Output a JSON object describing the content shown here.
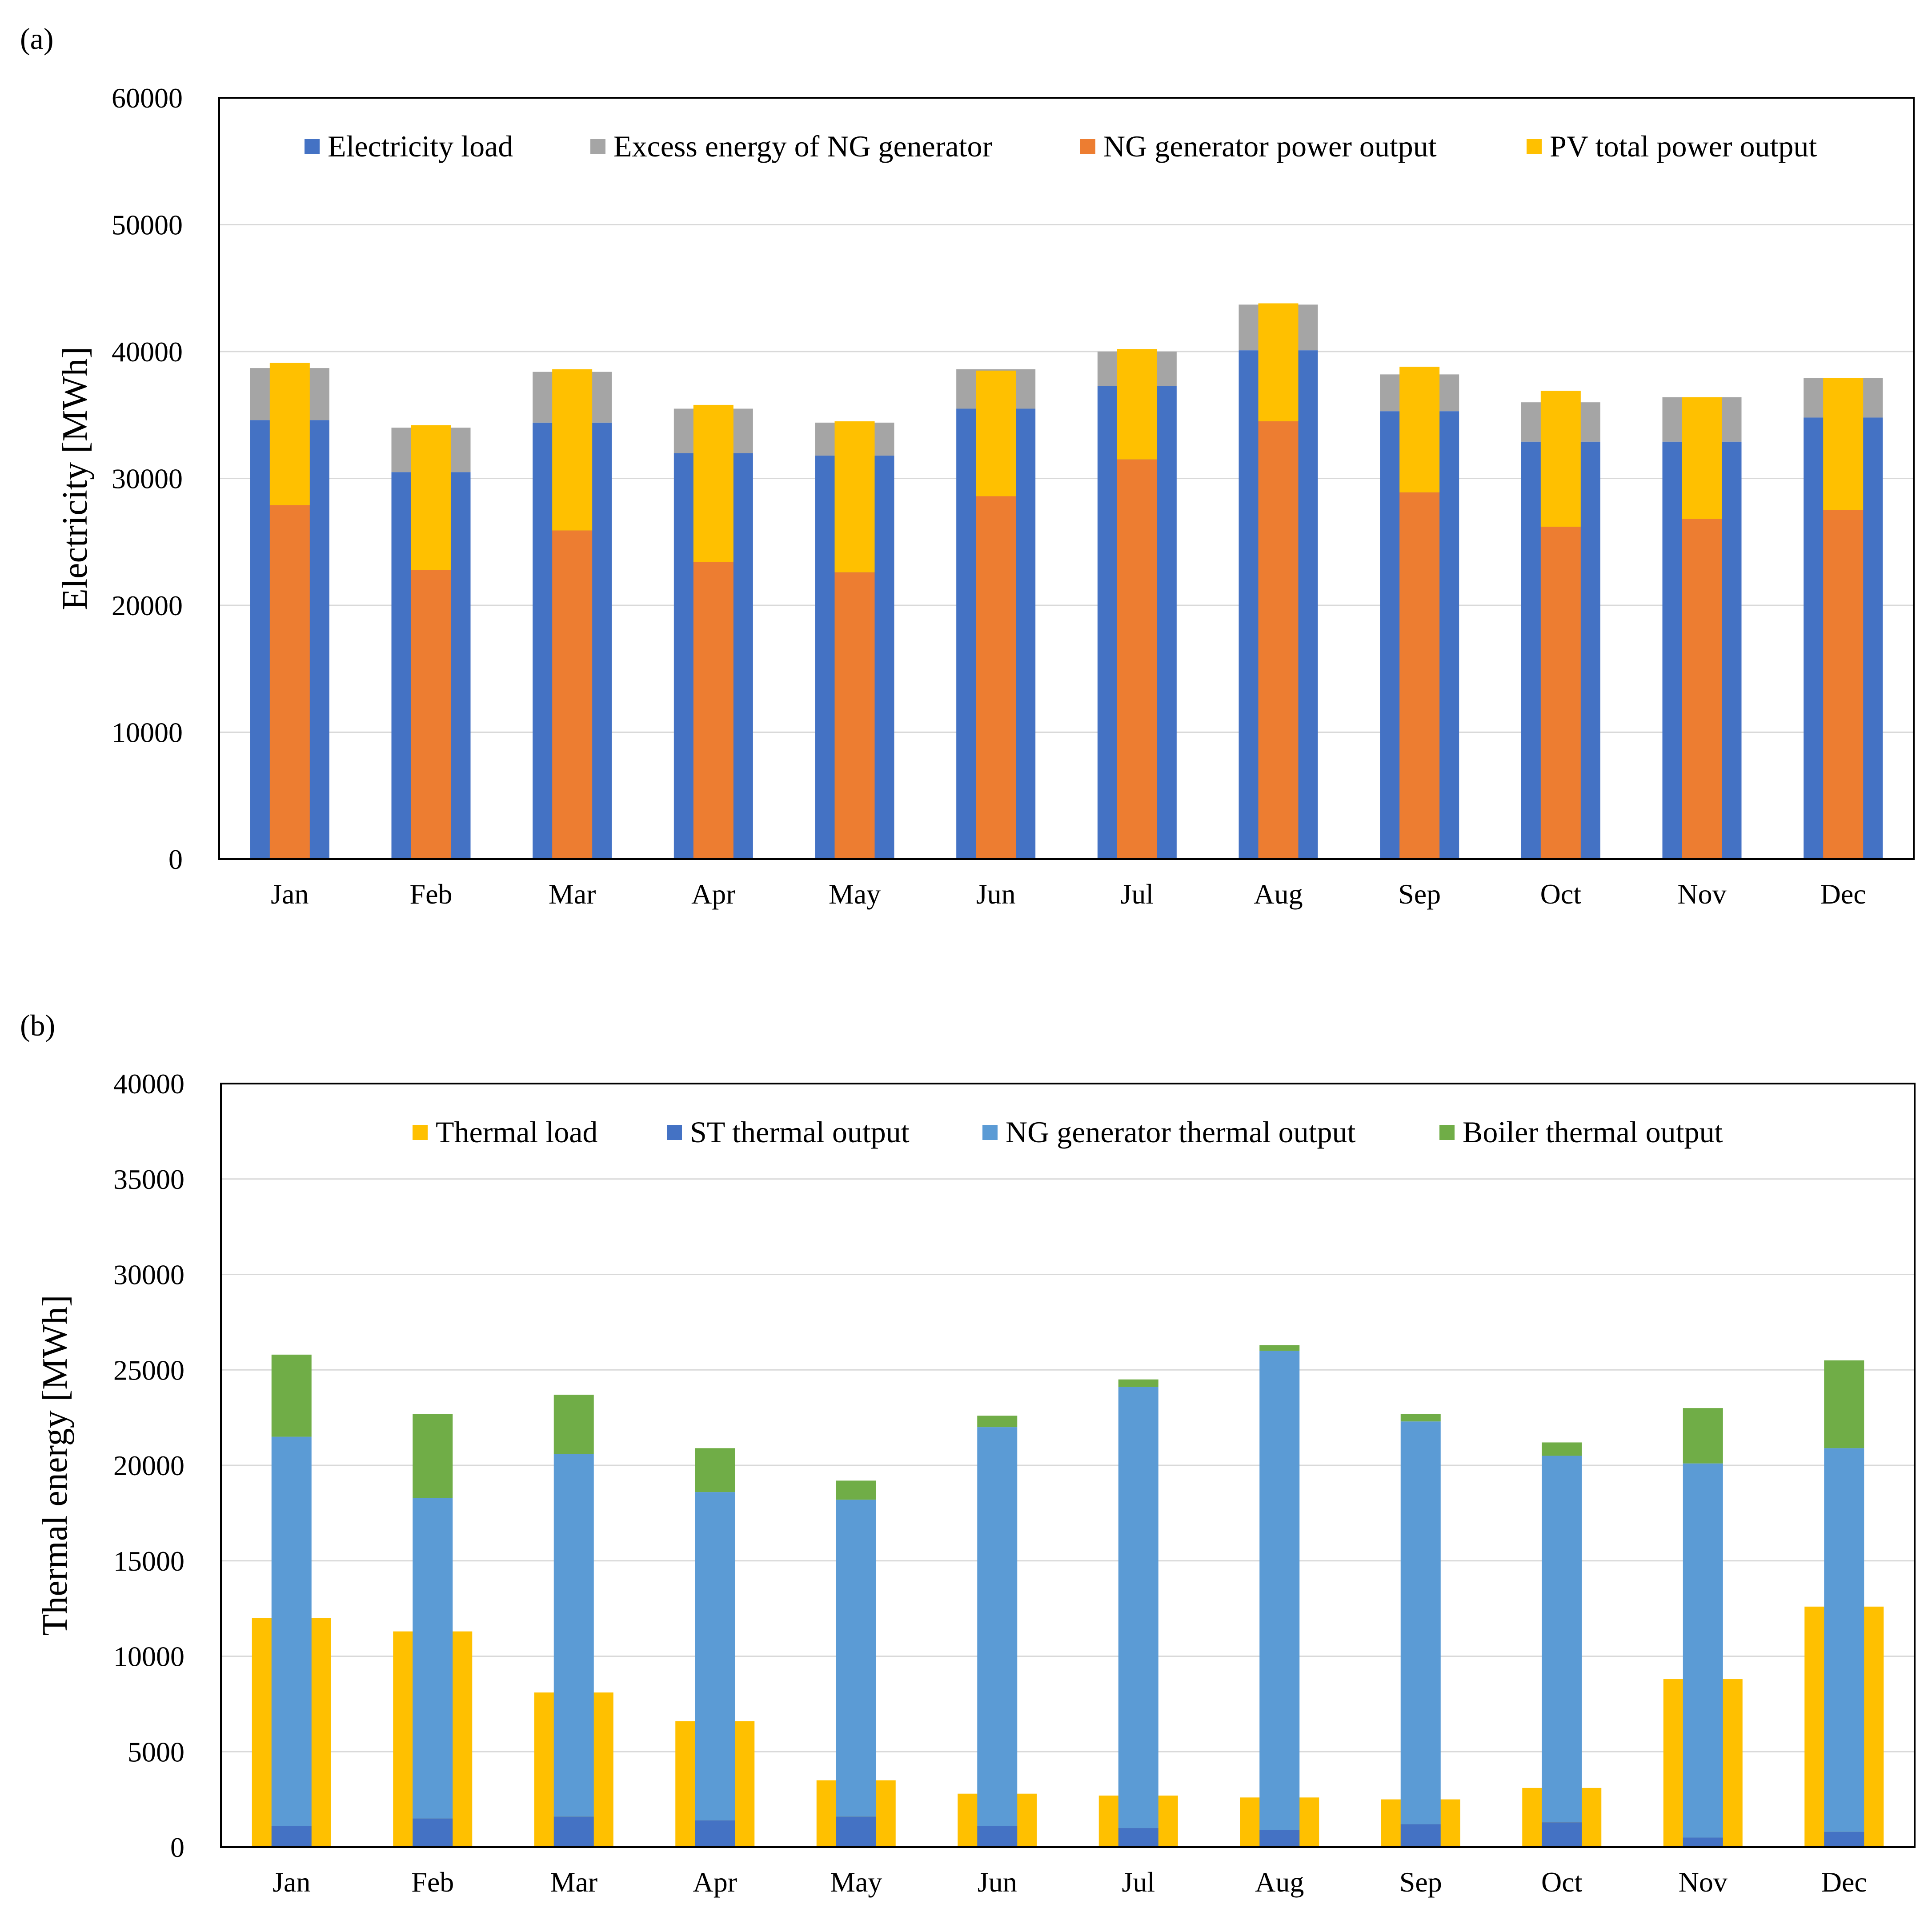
{
  "chart_data": [
    {
      "panel_label": "(a)",
      "type": "bar",
      "ylabel": "Electricity [MWh]",
      "xlabel": "",
      "ylim": [
        0,
        60000
      ],
      "yticks": [
        0,
        10000,
        20000,
        30000,
        40000,
        50000,
        60000
      ],
      "grid": true,
      "legend_position": "top",
      "categories": [
        "Jan",
        "Feb",
        "Mar",
        "Apr",
        "May",
        "Jun",
        "Jul",
        "Aug",
        "Sep",
        "Oct",
        "Nov",
        "Dec"
      ],
      "series": [
        {
          "name": "Electricity load",
          "color": "#4472C4",
          "values": [
            34600,
            30500,
            34400,
            32000,
            31800,
            35500,
            37300,
            40100,
            35300,
            32900,
            32900,
            34800
          ]
        },
        {
          "name": "Excess energy of NG generator",
          "color": "#A5A5A5",
          "values": [
            4100,
            3500,
            4000,
            3500,
            2600,
            3100,
            2700,
            3600,
            2900,
            3100,
            3500,
            3100
          ]
        },
        {
          "name": "NG generator power output",
          "color": "#ED7D31",
          "values": [
            27900,
            22800,
            25900,
            23400,
            22600,
            28600,
            31500,
            34500,
            28900,
            26200,
            26800,
            27500
          ]
        },
        {
          "name": "PV total power output",
          "color": "#FFC000",
          "values": [
            11200,
            11400,
            12700,
            12400,
            11900,
            9900,
            8700,
            9300,
            9900,
            10700,
            9600,
            10400
          ]
        }
      ]
    },
    {
      "panel_label": "(b)",
      "type": "bar",
      "ylabel": "Thermal energy [MWh]",
      "xlabel": "",
      "ylim": [
        0,
        40000
      ],
      "yticks": [
        0,
        5000,
        10000,
        15000,
        20000,
        25000,
        30000,
        35000,
        40000
      ],
      "grid": true,
      "legend_position": "top",
      "categories": [
        "Jan",
        "Feb",
        "Mar",
        "Apr",
        "May",
        "Jun",
        "Jul",
        "Aug",
        "Sep",
        "Oct",
        "Nov",
        "Dec"
      ],
      "series": [
        {
          "name": "Thermal load",
          "color": "#FFC000",
          "values": [
            12000,
            11300,
            8100,
            6600,
            3500,
            2800,
            2700,
            2600,
            2500,
            3100,
            8800,
            12600
          ]
        },
        {
          "name": "ST thermal output",
          "color": "#4472C4",
          "values": [
            1100,
            1500,
            1600,
            1400,
            1600,
            1100,
            1000,
            900,
            1200,
            1300,
            500,
            800
          ]
        },
        {
          "name": "NG generator thermal output",
          "color": "#5B9BD5",
          "values": [
            20400,
            16800,
            19000,
            17200,
            16600,
            20900,
            23100,
            25100,
            21100,
            19200,
            19600,
            20100
          ]
        },
        {
          "name": "Boiler thermal output",
          "color": "#70AD47",
          "values": [
            4300,
            4400,
            3100,
            2300,
            1000,
            600,
            400,
            300,
            400,
            700,
            2900,
            4600
          ]
        }
      ]
    }
  ]
}
